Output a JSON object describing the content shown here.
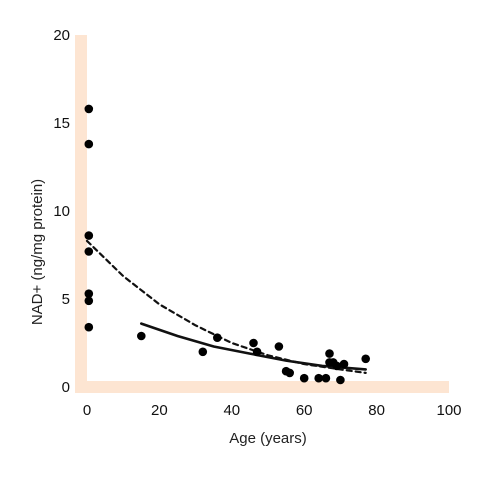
{
  "chart_data": {
    "type": "scatter",
    "xlabel": "Age (years)",
    "ylabel": "NAD+ (ng/mg protein)",
    "xlim": [
      0,
      100
    ],
    "ylim": [
      0,
      20
    ],
    "x_ticks": [
      0,
      20,
      40,
      60,
      80,
      100
    ],
    "y_ticks": [
      0,
      5,
      10,
      15,
      20
    ],
    "grid": false,
    "legend": "none",
    "axis_color": "#fde5d2",
    "point_color": "#000000",
    "points": [
      {
        "x": 0.5,
        "y": 15.8
      },
      {
        "x": 0.5,
        "y": 13.8
      },
      {
        "x": 0.5,
        "y": 8.6
      },
      {
        "x": 0.5,
        "y": 7.7
      },
      {
        "x": 0.5,
        "y": 5.3
      },
      {
        "x": 0.5,
        "y": 4.9
      },
      {
        "x": 0.5,
        "y": 3.4
      },
      {
        "x": 15,
        "y": 2.9
      },
      {
        "x": 32,
        "y": 2.0
      },
      {
        "x": 36,
        "y": 2.8
      },
      {
        "x": 46,
        "y": 2.5
      },
      {
        "x": 47,
        "y": 2.0
      },
      {
        "x": 53,
        "y": 2.3
      },
      {
        "x": 55,
        "y": 0.9
      },
      {
        "x": 56,
        "y": 0.8
      },
      {
        "x": 60,
        "y": 0.5
      },
      {
        "x": 64,
        "y": 0.5
      },
      {
        "x": 66,
        "y": 0.5
      },
      {
        "x": 67,
        "y": 1.9
      },
      {
        "x": 67,
        "y": 1.4
      },
      {
        "x": 68,
        "y": 1.4
      },
      {
        "x": 69,
        "y": 1.2
      },
      {
        "x": 70,
        "y": 0.4
      },
      {
        "x": 71,
        "y": 1.3
      },
      {
        "x": 77,
        "y": 1.6
      }
    ],
    "fit_lines": [
      {
        "style": "solid",
        "x": [
          15,
          25,
          35,
          45,
          55,
          65,
          77
        ],
        "y": [
          3.6,
          2.9,
          2.3,
          1.9,
          1.5,
          1.2,
          1.0
        ]
      },
      {
        "style": "dashed",
        "x": [
          0,
          10,
          20,
          30,
          40,
          50,
          60,
          70,
          77
        ],
        "y": [
          8.3,
          6.3,
          4.7,
          3.5,
          2.5,
          1.8,
          1.3,
          1.0,
          0.8
        ]
      }
    ]
  }
}
